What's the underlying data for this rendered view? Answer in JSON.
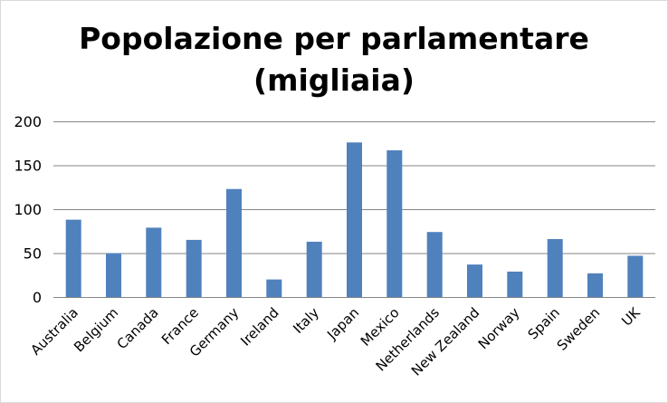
{
  "chart_data": {
    "type": "bar",
    "title_lines": [
      "Popolazione per parlamentare",
      "(migliaia)"
    ],
    "categories": [
      "Australia",
      "Belgium",
      "Canada",
      "France",
      "Germany",
      "Ireland",
      "Italy",
      "Japan",
      "Mexico",
      "Netherlands",
      "New Zealand",
      "Norway",
      "Spain",
      "Sweden",
      "UK"
    ],
    "series": [
      {
        "values": [
          88,
          50,
          79,
          65,
          123,
          20,
          63,
          176,
          167,
          74,
          37,
          29,
          66,
          27,
          47
        ]
      }
    ],
    "ylim": [
      0,
      200
    ],
    "yticks": [
      0,
      50,
      100,
      150,
      200
    ],
    "grid": true,
    "legend": "none",
    "bar_color": "#4f81bd",
    "grid_color": "#868686"
  }
}
